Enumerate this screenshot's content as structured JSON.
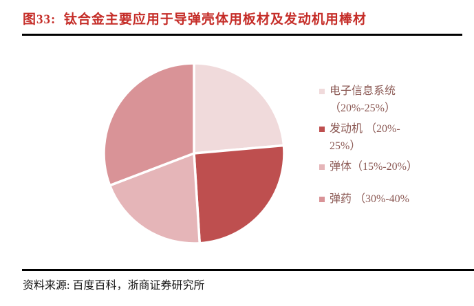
{
  "page": {
    "source": "资料来源: 百度百科，浙商证券研究所"
  },
  "theme": {
    "title_color": "#C52D28",
    "legend_text_color": "#8C5A55",
    "rule_color": "#000000",
    "background": "#FFFFFF"
  },
  "chart_data": {
    "type": "pie",
    "title": "图33:  钛合金主要应用于导弹壳体用板材及发动机用棒材",
    "legend_position": "right",
    "start_angle": "top",
    "direction": "clockwise",
    "segments": [
      {
        "label": "电子信息系统",
        "range": "20%-25%",
        "percent": 23.6,
        "color": "#F0DADB",
        "legend_lines": [
          "电子信息系统",
          "（20%-25%）"
        ]
      },
      {
        "label": "发动机",
        "range": "20%-25%",
        "percent": 25.4,
        "color": "#BE4F4F",
        "legend_lines": [
          "发动机 （20%-",
          "25%）"
        ]
      },
      {
        "label": "弹体",
        "range": "15%-20%",
        "percent": 20.2,
        "color": "#E5B5B8",
        "legend_lines": [
          "弹体（15%-20%）"
        ]
      },
      {
        "label": "弹药",
        "range": "30%-40%",
        "percent": 30.8,
        "color": "#D99397",
        "legend_lines": [
          "弹药 （30%-40%"
        ]
      }
    ]
  }
}
